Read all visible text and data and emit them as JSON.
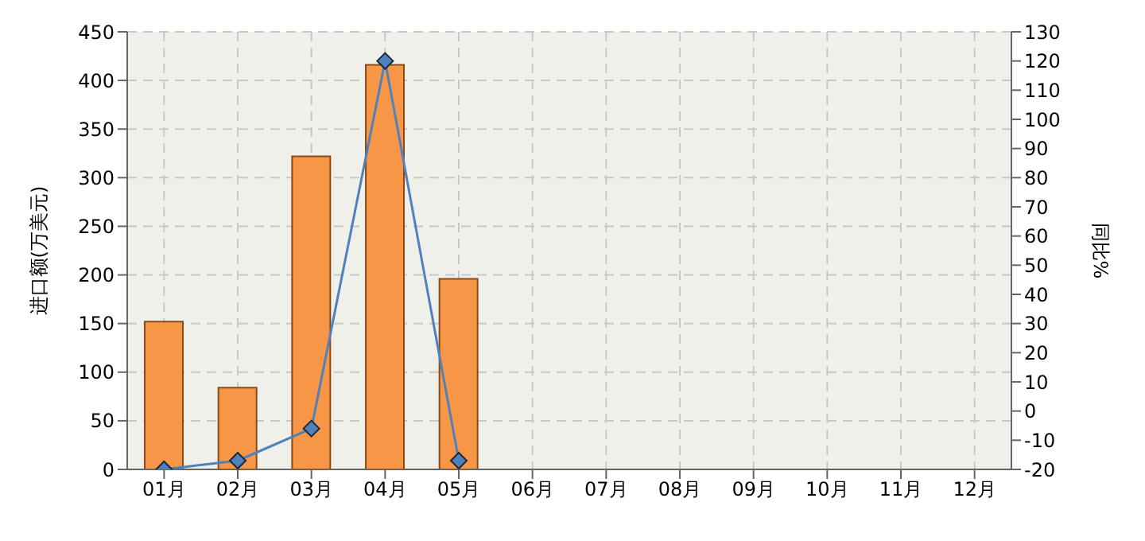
{
  "chart_data": {
    "type": "bar",
    "categories": [
      "01月",
      "02月",
      "03月",
      "04月",
      "05月",
      "06月",
      "07月",
      "08月",
      "09月",
      "10月",
      "11月",
      "12月"
    ],
    "ylabel": "进口额(万美元)",
    "y2label": "同比%",
    "series": [
      {
        "color": "#f79646",
        "values": [
          152,
          84,
          322,
          416,
          196,
          null,
          null,
          null,
          null,
          null,
          null,
          null
        ]
      },
      {
        "type": "line",
        "axis": "y2",
        "color": "#4f81bd",
        "values": [
          -20,
          -17,
          -6,
          120,
          -17,
          null,
          null,
          null,
          null,
          null,
          null,
          null
        ]
      }
    ],
    "ylim": [
      0,
      450
    ],
    "yticks": [
      0,
      50,
      100,
      150,
      200,
      250,
      300,
      350,
      400,
      450
    ],
    "y2lim": [
      -20,
      130
    ],
    "y2ticks": [
      -20,
      -10,
      0,
      10,
      20,
      30,
      40,
      50,
      60,
      70,
      80,
      90,
      100,
      110,
      120,
      130
    ],
    "grid": true,
    "marker": "diamond",
    "line_style": "solid"
  }
}
